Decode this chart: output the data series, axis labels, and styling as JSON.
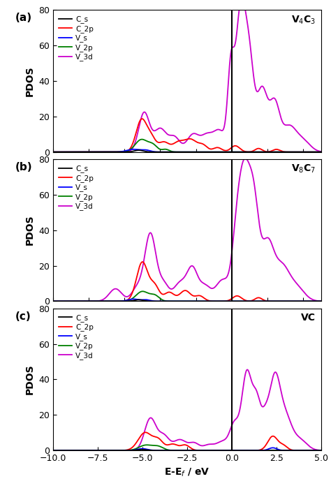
{
  "title_a": "V$_4$C$_3$",
  "title_b": "V$_8$C$_7$",
  "title_c": "VC",
  "xlabel": "E-E$_f$ / eV",
  "ylabel": "PDOS",
  "xlim": [
    -10.0,
    5.0
  ],
  "ylim": [
    0,
    80
  ],
  "xticks": [
    -10.0,
    -7.5,
    -5.0,
    -2.5,
    0.0,
    2.5,
    5.0
  ],
  "yticks": [
    0,
    20,
    40,
    60,
    80
  ],
  "colors": {
    "C_s": "#000000",
    "C_2p": "#ff0000",
    "V_s": "#0000ff",
    "V_2p": "#008000",
    "V_3d": "#cc00cc"
  },
  "legend_labels": [
    "C_s",
    "C_2p",
    "V_s",
    "V_2p",
    "V_3d"
  ],
  "panel_labels": [
    "(a)",
    "(b)",
    "(c)"
  ],
  "lw": 1.3
}
